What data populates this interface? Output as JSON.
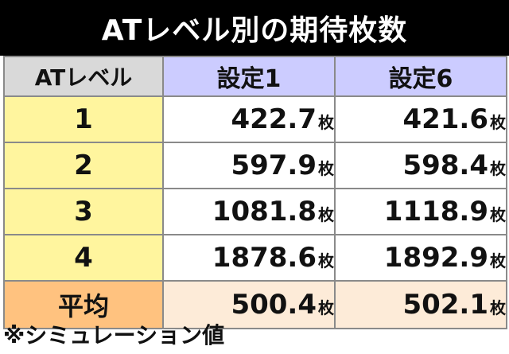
{
  "title": "ATレベル別の期待枚数",
  "header": {
    "level_label": "ATレベル",
    "setting1": "設定1",
    "setting6": "設定6"
  },
  "unit": "枚",
  "rows": [
    {
      "level": "1",
      "s1": "422.7",
      "s6": "421.6"
    },
    {
      "level": "2",
      "s1": "597.9",
      "s6": "598.4"
    },
    {
      "level": "3",
      "s1": "1081.8",
      "s6": "1118.9"
    },
    {
      "level": "4",
      "s1": "1878.6",
      "s6": "1892.9"
    }
  ],
  "average": {
    "label": "平均",
    "s1": "500.4",
    "s6": "502.1"
  },
  "note": "※シミュレーション値",
  "colors": {
    "title_bg": "#000000",
    "header_gray": "#d9d9d9",
    "header_purple": "#ccccff",
    "level_yellow": "#fff59e",
    "avg_orange": "#ffc27f",
    "avg_cream": "#fdebd8"
  }
}
